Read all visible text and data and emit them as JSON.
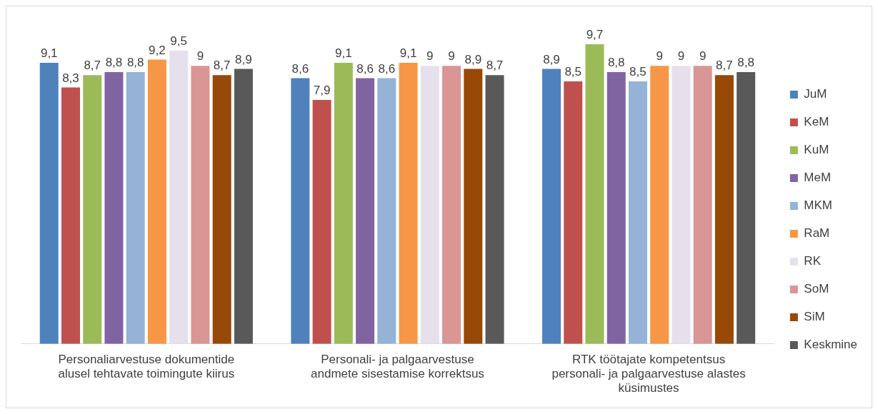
{
  "chart_data": {
    "type": "bar",
    "categories": [
      "Personaliarvestuse dokumentide alusel tehtavate toimingute kiirus",
      "Personali- ja palgaarvestuse andmete sisestamise korrektsus",
      "RTK töötajate kompetentsus personali- ja palgaarvestuse alastes küsimustes"
    ],
    "series": [
      {
        "name": "JuM",
        "color": "#4f81bd",
        "values": [
          9.1,
          8.6,
          8.9
        ],
        "value_labels": [
          "9,1",
          "8,6",
          "8,9"
        ]
      },
      {
        "name": "KeM",
        "color": "#c0504d",
        "values": [
          8.3,
          7.9,
          8.5
        ],
        "value_labels": [
          "8,3",
          "7,9",
          "8,5"
        ]
      },
      {
        "name": "KuM",
        "color": "#9bbb59",
        "values": [
          8.7,
          9.1,
          9.7
        ],
        "value_labels": [
          "8,7",
          "9,1",
          "9,7"
        ]
      },
      {
        "name": "MeM",
        "color": "#8064a2",
        "values": [
          8.8,
          8.6,
          8.8
        ],
        "value_labels": [
          "8,8",
          "8,6",
          "8,8"
        ]
      },
      {
        "name": "MKM",
        "color": "#95b3d7",
        "values": [
          8.8,
          8.6,
          8.5
        ],
        "value_labels": [
          "8,8",
          "8,6",
          "8,5"
        ]
      },
      {
        "name": "RaM",
        "color": "#f79646",
        "values": [
          9.2,
          9.1,
          9
        ],
        "value_labels": [
          "9,2",
          "9,1",
          "9"
        ]
      },
      {
        "name": "RK",
        "color": "#e6e0ec",
        "values": [
          9.5,
          9,
          9
        ],
        "value_labels": [
          "9,5",
          "9",
          "9"
        ]
      },
      {
        "name": "SoM",
        "color": "#d99694",
        "values": [
          9,
          9,
          9
        ],
        "value_labels": [
          "9",
          "9",
          "9"
        ]
      },
      {
        "name": "SiM",
        "color": "#984807",
        "values": [
          8.7,
          8.9,
          8.7
        ],
        "value_labels": [
          "8,7",
          "8,9",
          "8,7"
        ]
      },
      {
        "name": "Keskmine",
        "color": "#595959",
        "values": [
          8.9,
          8.7,
          8.8
        ],
        "value_labels": [
          "8,9",
          "8,7",
          "8,8"
        ]
      }
    ],
    "grid": false,
    "legend": "right",
    "tick_labels": "x"
  }
}
